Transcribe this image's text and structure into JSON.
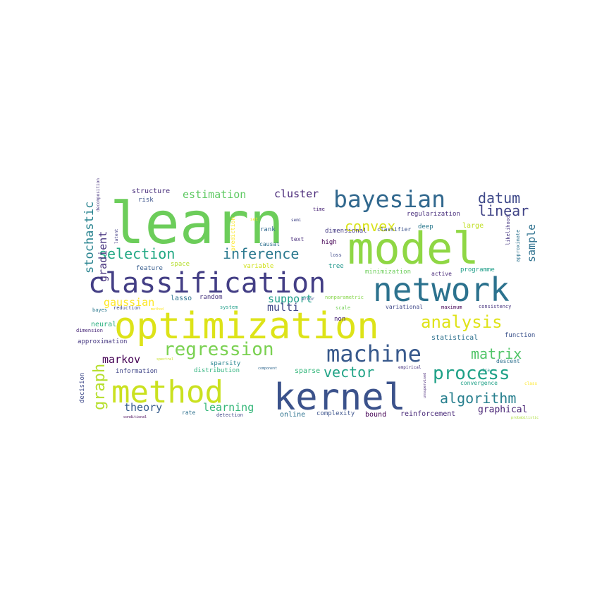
{
  "words": [
    {
      "text": "learn",
      "color": "#6ccd5a"
    },
    {
      "text": "model",
      "color": "#8fd744"
    },
    {
      "text": "optimization",
      "color": "#dde318"
    },
    {
      "text": "kernel",
      "color": "#3b528b"
    },
    {
      "text": "network",
      "color": "#2c728e"
    },
    {
      "text": "classification",
      "color": "#433e85"
    },
    {
      "text": "method",
      "color": "#cae11f"
    },
    {
      "text": "bayesian",
      "color": "#31688e"
    },
    {
      "text": "machine",
      "color": "#38598c"
    },
    {
      "text": "regression",
      "color": "#7ad151"
    },
    {
      "text": "process",
      "color": "#1fa187"
    },
    {
      "text": "analysis",
      "color": "#dfe318"
    },
    {
      "text": "selection",
      "color": "#22a884"
    },
    {
      "text": "inference",
      "color": "#2a788e"
    },
    {
      "text": "algorithm",
      "color": "#277f8e"
    },
    {
      "text": "datum",
      "color": "#3e4989"
    },
    {
      "text": "vector",
      "color": "#20a386"
    },
    {
      "text": "matrix",
      "color": "#52c569"
    },
    {
      "text": "convex",
      "color": "#d8e219"
    },
    {
      "text": "linear",
      "color": "#414487"
    },
    {
      "text": "graph",
      "color": "#b5de2b"
    },
    {
      "text": "estimation",
      "color": "#5ec962"
    },
    {
      "text": "cluster",
      "color": "#482878"
    },
    {
      "text": "stochastic",
      "color": "#26828e"
    },
    {
      "text": "gradient",
      "color": "#46337e"
    },
    {
      "text": "markov",
      "color": "#440154"
    },
    {
      "text": "gaussian",
      "color": "#fde725"
    },
    {
      "text": "support",
      "color": "#1f9e89"
    },
    {
      "text": "multi",
      "color": "#3f4788"
    },
    {
      "text": "theory",
      "color": "#365c8d"
    },
    {
      "text": "learning",
      "color": "#35b779"
    },
    {
      "text": "sample",
      "color": "#2d708e"
    },
    {
      "text": "graphical",
      "color": "#482475"
    },
    {
      "text": "structure",
      "color": "#472c7a"
    },
    {
      "text": "risk",
      "color": "#3b528b"
    },
    {
      "text": "decomposition",
      "color": "#46337e"
    },
    {
      "text": "latent",
      "color": "#433e85"
    },
    {
      "text": "prediction",
      "color": "#fde725"
    },
    {
      "text": "time",
      "color": "#482475"
    },
    {
      "text": "set",
      "color": "#fde725"
    },
    {
      "text": "semi",
      "color": "#414487"
    },
    {
      "text": "regularization",
      "color": "#472d7b"
    },
    {
      "text": "large",
      "color": "#c0df25"
    },
    {
      "text": "deep",
      "color": "#2a788e"
    },
    {
      "text": "dimensional",
      "color": "#443983"
    },
    {
      "text": "classifier",
      "color": "#3b528b"
    },
    {
      "text": "likelihood",
      "color": "#453781"
    },
    {
      "text": "approximate",
      "color": "#2c728e"
    },
    {
      "text": "rank",
      "color": "#31688e"
    },
    {
      "text": "text",
      "color": "#472c7a"
    },
    {
      "text": "high",
      "color": "#440154"
    },
    {
      "text": "causal",
      "color": "#2d708e"
    },
    {
      "text": "loss",
      "color": "#3e4989"
    },
    {
      "text": "feature",
      "color": "#365c8d"
    },
    {
      "text": "space",
      "color": "#b5de2b"
    },
    {
      "text": "variable",
      "color": "#d0e11c"
    },
    {
      "text": "tree",
      "color": "#1f968b"
    },
    {
      "text": "minimization",
      "color": "#6ccd5a"
    },
    {
      "text": "active",
      "color": "#482878"
    },
    {
      "text": "programme",
      "color": "#1f9e89"
    },
    {
      "text": "lasso",
      "color": "#2c728e"
    },
    {
      "text": "random",
      "color": "#46337e"
    },
    {
      "text": "error",
      "color": "#3b528b"
    },
    {
      "text": "nonparametric",
      "color": "#86d549"
    },
    {
      "text": "variational",
      "color": "#3f4788"
    },
    {
      "text": "maximum",
      "color": "#440154"
    },
    {
      "text": "consistency",
      "color": "#46337e"
    },
    {
      "text": "bayes",
      "color": "#2a788e"
    },
    {
      "text": "reduction",
      "color": "#3e4989"
    },
    {
      "text": "method",
      "color": "#fde725"
    },
    {
      "text": "system",
      "color": "#1f9e89"
    },
    {
      "text": "scale",
      "color": "#73d056"
    },
    {
      "text": "non",
      "color": "#482475"
    },
    {
      "text": "neural",
      "color": "#29af7f"
    },
    {
      "text": "dimension",
      "color": "#482878"
    },
    {
      "text": "statistical",
      "color": "#2d708e"
    },
    {
      "text": "function",
      "color": "#3b528b"
    },
    {
      "text": "approximation",
      "color": "#453781"
    },
    {
      "text": "sparsity",
      "color": "#25848e"
    },
    {
      "text": "spectral",
      "color": "#c8e020"
    },
    {
      "text": "information",
      "color": "#404688"
    },
    {
      "text": "distribution",
      "color": "#2db27d"
    },
    {
      "text": "component",
      "color": "#31688e"
    },
    {
      "text": "sparse",
      "color": "#32b67a"
    },
    {
      "text": "empirical",
      "color": "#46337e"
    },
    {
      "text": "unsupervised",
      "color": "#482878"
    },
    {
      "text": "descent",
      "color": "#2d708e"
    },
    {
      "text": "ica",
      "color": "#21918c"
    },
    {
      "text": "class",
      "color": "#fde725"
    },
    {
      "text": "convergence",
      "color": "#1fa187"
    },
    {
      "text": "decision",
      "color": "#3e4989"
    },
    {
      "text": "online",
      "color": "#2c728e"
    },
    {
      "text": "complexity",
      "color": "#3b528b"
    },
    {
      "text": "bound",
      "color": "#440154"
    },
    {
      "text": "reinforcement",
      "color": "#482878"
    },
    {
      "text": "rate",
      "color": "#2d708e"
    },
    {
      "text": "detection",
      "color": "#3f4788"
    },
    {
      "text": "conditional",
      "color": "#440154"
    },
    {
      "text": "probabilistic",
      "color": "#a8db34"
    }
  ]
}
